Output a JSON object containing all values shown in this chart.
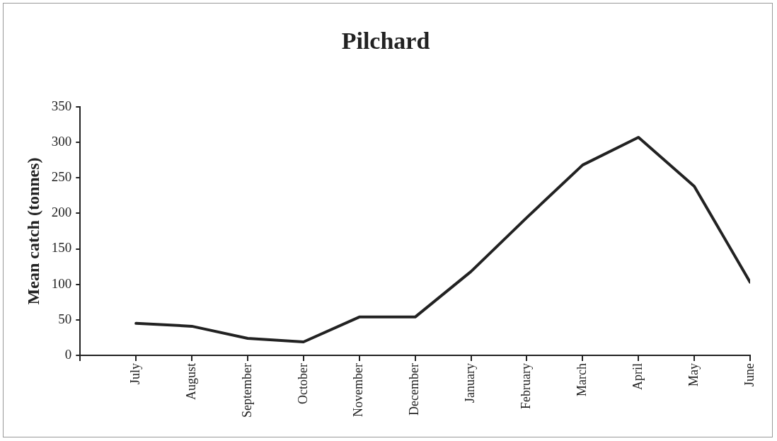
{
  "chart_data": {
    "type": "line",
    "title": "Pilchard",
    "ylabel": "Mean catch (tonnes)",
    "categories": [
      "July",
      "August",
      "September",
      "October",
      "November",
      "December",
      "January",
      "February",
      "March",
      "April",
      "May",
      "June"
    ],
    "values": [
      45,
      41,
      24,
      19,
      54,
      54,
      118,
      194,
      268,
      307,
      238,
      103
    ],
    "color": "#222222",
    "ylim": [
      0,
      350
    ],
    "yticks": [
      0,
      50,
      100,
      150,
      200,
      250,
      300,
      350
    ],
    "grid": false,
    "legend": false,
    "marker": "none",
    "line_style": "solid"
  }
}
